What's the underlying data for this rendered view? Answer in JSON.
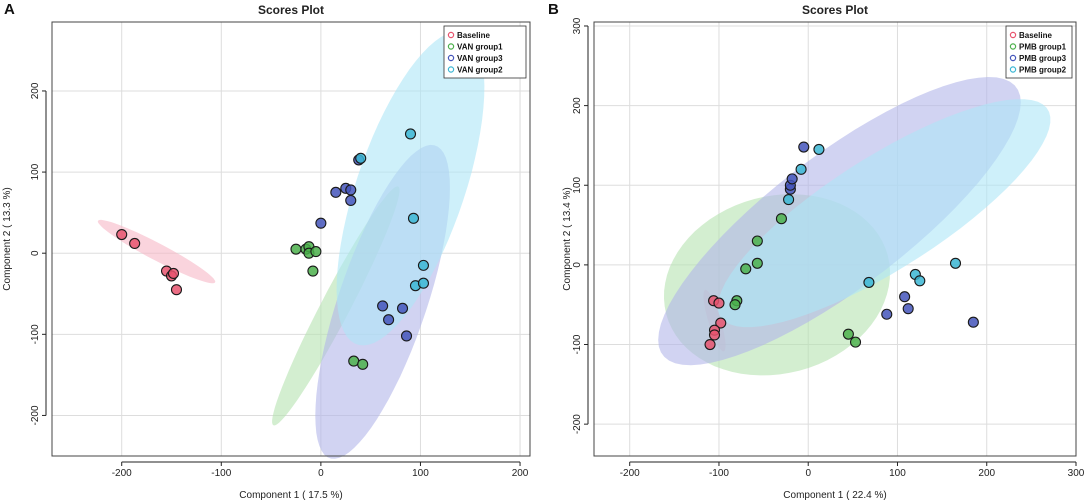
{
  "chart_data": [
    {
      "type": "scatter",
      "panel_label": "A",
      "title": "Scores Plot",
      "xlabel": "Component 1 ( 17.5 %)",
      "ylabel": "Component 2 ( 13.3 %)",
      "xlim": [
        -270,
        210
      ],
      "ylim": [
        -250,
        285
      ],
      "xticks": [
        -200,
        -100,
        0,
        100,
        200
      ],
      "yticks": [
        -200,
        -100,
        0,
        100,
        200
      ],
      "grid": true,
      "legend_position": "top-right",
      "series": [
        {
          "name": "Baseline",
          "color": "#e8546e",
          "fill": "#f6b8c6",
          "points": [
            [
              -200,
              23
            ],
            [
              -187,
              12
            ],
            [
              -155,
              -22
            ],
            [
              -150,
              -28
            ],
            [
              -148,
              -25
            ],
            [
              -145,
              -45
            ]
          ],
          "ellipse": {
            "center": [
              -165,
              2
            ],
            "rx": 70,
            "ry": 10,
            "angle": -33
          }
        },
        {
          "name": "VAN group1",
          "color": "#4bb04b",
          "fill": "#b5e3b0",
          "points": [
            [
              -25,
              5
            ],
            [
              -15,
              5
            ],
            [
              -12,
              8
            ],
            [
              -12,
              0
            ],
            [
              -5,
              2
            ],
            [
              -8,
              -22
            ],
            [
              33,
              -133
            ],
            [
              42,
              -137
            ]
          ],
          "ellipse": {
            "center": [
              15,
              -65
            ],
            "rx": 15,
            "ry": 160,
            "angle": -23
          }
        },
        {
          "name": "VAN group3",
          "color": "#4455bb",
          "fill": "#b3b6ea",
          "points": [
            [
              0,
              37
            ],
            [
              15,
              75
            ],
            [
              25,
              80
            ],
            [
              30,
              65
            ],
            [
              30,
              78
            ],
            [
              38,
              115
            ],
            [
              62,
              -65
            ],
            [
              68,
              -82
            ],
            [
              82,
              -68
            ],
            [
              86,
              -102
            ]
          ],
          "ellipse": {
            "center": [
              62,
              -60
            ],
            "rx": 45,
            "ry": 200,
            "angle": -15
          }
        },
        {
          "name": "VAN group2",
          "color": "#3bb6d4",
          "fill": "#aee6f6",
          "points": [
            [
              40,
              117
            ],
            [
              90,
              147
            ],
            [
              93,
              43
            ],
            [
              95,
              -40
            ],
            [
              103,
              -15
            ],
            [
              103,
              -37
            ]
          ],
          "ellipse": {
            "center": [
              90,
              80
            ],
            "rx": 55,
            "ry": 200,
            "angle": -15
          }
        }
      ]
    },
    {
      "type": "scatter",
      "panel_label": "B",
      "title": "Scores Plot",
      "xlabel": "Component 1 ( 22.4 %)",
      "ylabel": "Component 2 ( 13.4 %)",
      "xlim": [
        -240,
        300
      ],
      "ylim": [
        -240,
        305
      ],
      "xticks": [
        -200,
        -100,
        0,
        100,
        200,
        300
      ],
      "yticks": [
        -200,
        -100,
        0,
        100,
        200,
        300
      ],
      "grid": true,
      "legend_position": "top-right",
      "series": [
        {
          "name": "Baseline",
          "color": "#e8546e",
          "fill": "#f6b8c6",
          "points": [
            [
              -106,
              -45
            ],
            [
              -100,
              -48
            ],
            [
              -98,
              -73
            ],
            [
              -105,
              -82
            ],
            [
              -105,
              -88
            ],
            [
              -110,
              -100
            ]
          ],
          "ellipse": {
            "center": [
              -105,
              -70
            ],
            "rx": 7,
            "ry": 40,
            "angle": 15
          }
        },
        {
          "name": "PMB group1",
          "color": "#4bb04b",
          "fill": "#b5e3b0",
          "points": [
            [
              -80,
              -45
            ],
            [
              -82,
              -50
            ],
            [
              -57,
              30
            ],
            [
              -57,
              2
            ],
            [
              -70,
              -5
            ],
            [
              -30,
              58
            ],
            [
              45,
              -87
            ],
            [
              53,
              -97
            ]
          ],
          "ellipse": {
            "center": [
              -35,
              -25
            ],
            "rx": 130,
            "ry": 110,
            "angle": 25
          }
        },
        {
          "name": "PMB group3",
          "color": "#4455bb",
          "fill": "#b3b6ea",
          "points": [
            [
              -20,
              95
            ],
            [
              -20,
              100
            ],
            [
              -18,
              108
            ],
            [
              -5,
              148
            ],
            [
              88,
              -62
            ],
            [
              108,
              -40
            ],
            [
              112,
              -55
            ],
            [
              185,
              -72
            ]
          ],
          "ellipse": {
            "center": [
              35,
              55
            ],
            "rx": 260,
            "ry": 80,
            "angle": 41
          }
        },
        {
          "name": "PMB group2",
          "color": "#3bb6d4",
          "fill": "#aee6f6",
          "points": [
            [
              -8,
              120
            ],
            [
              12,
              145
            ],
            [
              -22,
              82
            ],
            [
              68,
              -22
            ],
            [
              120,
              -12
            ],
            [
              125,
              -20
            ],
            [
              165,
              2
            ]
          ],
          "ellipse": {
            "center": [
              85,
              65
            ],
            "rx": 225,
            "ry": 68,
            "angle": 36
          }
        }
      ]
    }
  ]
}
